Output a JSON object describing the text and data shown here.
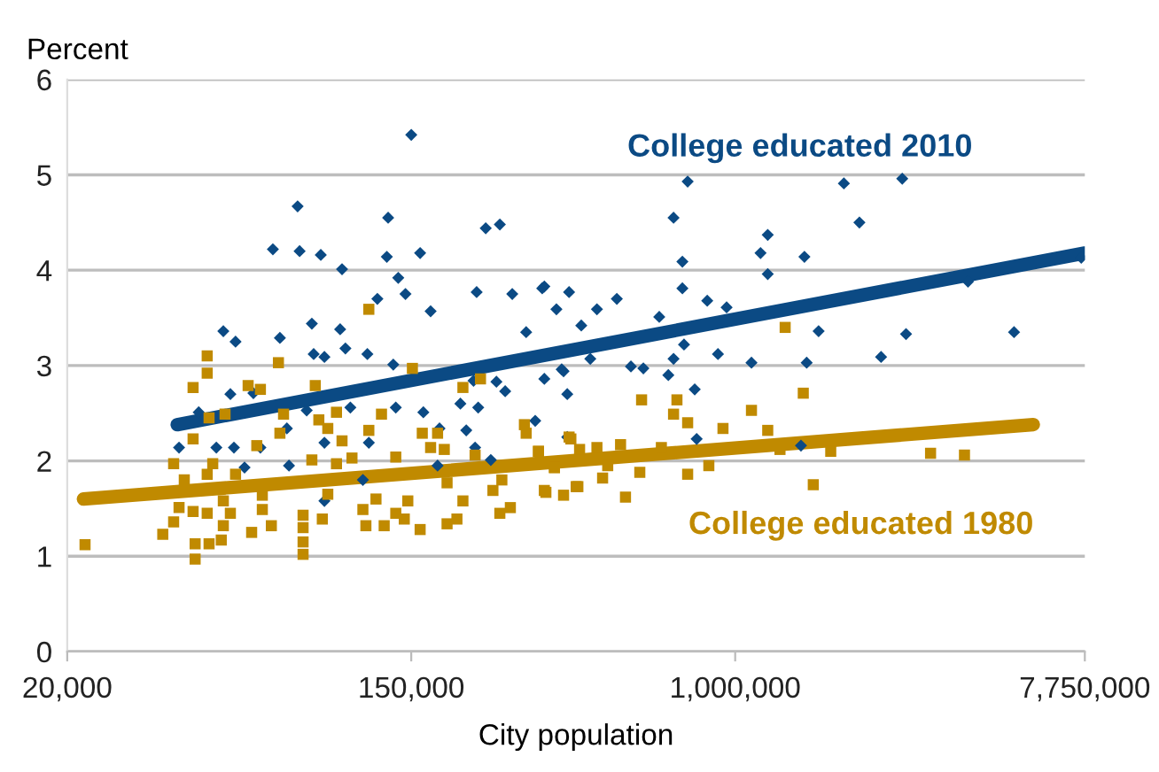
{
  "chart_data": {
    "type": "scatter",
    "xlabel": "City population",
    "ylabel": "Percent",
    "log": "x",
    "grid": "y",
    "legend": false,
    "xlim": [
      20000,
      7750000
    ],
    "xticks": [
      {
        "value": 20000,
        "label": "20,000"
      },
      {
        "value": 150000,
        "label": "150,000"
      },
      {
        "value": 1000000,
        "label": "1,000,000"
      },
      {
        "value": 7750000,
        "label": "7,750,000"
      }
    ],
    "ylim": [
      0,
      6
    ],
    "yticks": [
      0,
      1,
      2,
      3,
      4,
      5,
      6
    ],
    "series": [
      {
        "name": "College educated 2010",
        "marker": "diamond",
        "color": "#0b4a84",
        "x": [
          150000,
          77100,
          66700,
          78000,
          88300,
          131000,
          130000,
          158000,
          100000,
          139000,
          145000,
          232000,
          252000,
          49900,
          53600,
          69500,
          83800,
          98900,
          123000,
          168000,
          220000,
          271000,
          323000,
          294000,
          378000,
          406000,
          84700,
          90200,
          102000,
          116000,
          135000,
          216000,
          247000,
          327000,
          362000,
          52000,
          59500,
          43200,
          81300,
          105000,
          137000,
          161000,
          200000,
          222000,
          260000,
          374000,
          38500,
          47900,
          53100,
          62000,
          72400,
          90200,
          117000,
          177000,
          207000,
          218000,
          239000,
          374000,
          73300,
          56500,
          113000,
          175000,
          90200,
          757000,
          1890000,
          2660000,
          697000,
          2070000,
          1210000,
          1160000,
          734000,
          1500000,
          1210000,
          734000,
          327000,
          351000,
          445000,
          500000,
          641000,
          849000,
          951000,
          3910000,
          1630000,
          2720000,
          5120000,
          7590000,
          741000,
          904000,
          428000,
          366000,
          543000,
          584000,
          697000,
          676000,
          1100000,
          1520000,
          2350000,
          789000,
          310000,
          798000,
          1470000
        ],
        "values": [
          5.42,
          4.67,
          4.22,
          4.2,
          4.16,
          4.55,
          4.14,
          4.18,
          4.01,
          3.92,
          3.75,
          4.44,
          4.48,
          3.36,
          3.25,
          3.29,
          3.44,
          3.38,
          3.7,
          3.57,
          3.77,
          3.75,
          3.81,
          3.35,
          3.77,
          3.42,
          3.12,
          3.09,
          3.18,
          3.12,
          3.01,
          2.84,
          2.83,
          2.86,
          2.96,
          2.7,
          2.71,
          2.51,
          2.53,
          2.56,
          2.56,
          2.51,
          2.6,
          2.56,
          2.73,
          2.7,
          2.14,
          2.14,
          2.14,
          2.14,
          2.34,
          2.19,
          2.19,
          2.34,
          2.32,
          2.14,
          2.01,
          2.25,
          1.95,
          1.93,
          1.8,
          1.95,
          1.58,
          4.93,
          4.91,
          4.96,
          4.55,
          4.5,
          4.37,
          4.18,
          4.09,
          4.14,
          3.96,
          3.81,
          3.83,
          3.59,
          3.59,
          3.7,
          3.51,
          3.68,
          3.61,
          3.88,
          3.36,
          3.33,
          3.35,
          4.13,
          3.22,
          3.12,
          3.07,
          2.94,
          2.99,
          2.97,
          3.07,
          2.9,
          3.03,
          3.03,
          3.09,
          2.75,
          2.42,
          2.23,
          2.16
        ]
      },
      {
        "type": "line",
        "color": "#0b4a84",
        "x": [
          38100,
          7750000
        ],
        "values": [
          2.38,
          4.18
        ]
      },
      {
        "name": "College educated 1980",
        "marker": "square",
        "color": "#c08a00",
        "x": [
          117000,
          45400,
          45400,
          68900,
          41800,
          57700,
          62000,
          85500,
          151000,
          225000,
          203000,
          45900,
          50400,
          71000,
          96800,
          126000,
          87300,
          92000,
          69500,
          117000,
          160000,
          175000,
          291000,
          294000,
          41800,
          60700,
          100000,
          168000,
          182000,
          382000,
          37300,
          46900,
          83800,
          96800,
          106000,
          137000,
          218000,
          316000,
          39700,
          45400,
          53600,
          185000,
          255000,
          347000,
          49900,
          62700,
          92000,
          122000,
          147000,
          203000,
          242000,
          268000,
          327000,
          394000,
          38500,
          52000,
          62700,
          113000,
          137000,
          37300,
          41800,
          45400,
          49900,
          58900,
          66100,
          89100,
          115000,
          128000,
          144000,
          158000,
          185000,
          196000,
          252000,
          35000,
          42300,
          45900,
          49300,
          79600,
          79600,
          79600,
          79600,
          42300,
          22200,
          1340000,
          1490000,
          578000,
          711000,
          697000,
          1100000,
          757000,
          931000,
          1210000,
          378000,
          511000,
          316000,
          402000,
          445000,
          649000,
          1300000,
          1750000,
          3140000,
          3830000,
          347000,
          474000,
          572000,
          857000,
          757000,
          460000,
          330000,
          366000,
          398000,
          526000,
          1580000
        ],
        "values": [
          3.59,
          3.1,
          2.92,
          3.03,
          2.77,
          2.79,
          2.75,
          2.79,
          2.97,
          2.86,
          2.77,
          2.45,
          2.49,
          2.49,
          2.51,
          2.49,
          2.43,
          2.34,
          2.29,
          2.32,
          2.29,
          2.29,
          2.38,
          2.29,
          2.23,
          2.16,
          2.21,
          2.14,
          2.12,
          2.23,
          1.97,
          1.97,
          2.01,
          1.97,
          2.03,
          2.04,
          2.06,
          2.1,
          1.8,
          1.86,
          1.86,
          1.77,
          1.8,
          1.93,
          1.58,
          1.64,
          1.65,
          1.6,
          1.58,
          1.58,
          1.69,
          1.51,
          1.69,
          1.73,
          1.51,
          1.45,
          1.49,
          1.49,
          1.45,
          1.36,
          1.47,
          1.45,
          1.32,
          1.25,
          1.32,
          1.39,
          1.32,
          1.32,
          1.39,
          1.28,
          1.34,
          1.39,
          1.45,
          1.23,
          1.13,
          1.13,
          1.17,
          1.43,
          1.3,
          1.15,
          1.02,
          0.97,
          1.12,
          3.4,
          2.71,
          2.64,
          2.64,
          2.49,
          2.53,
          2.4,
          2.34,
          2.32,
          2.25,
          2.17,
          2.1,
          2.12,
          2.14,
          2.14,
          2.12,
          2.1,
          2.08,
          2.06,
          1.93,
          1.95,
          1.88,
          1.95,
          1.86,
          1.82,
          1.67,
          1.64,
          1.73,
          1.62,
          1.75
        ]
      },
      {
        "type": "line",
        "color": "#c08a00",
        "x": [
          22000,
          5730000
        ],
        "values": [
          1.6,
          2.38
        ]
      }
    ]
  }
}
